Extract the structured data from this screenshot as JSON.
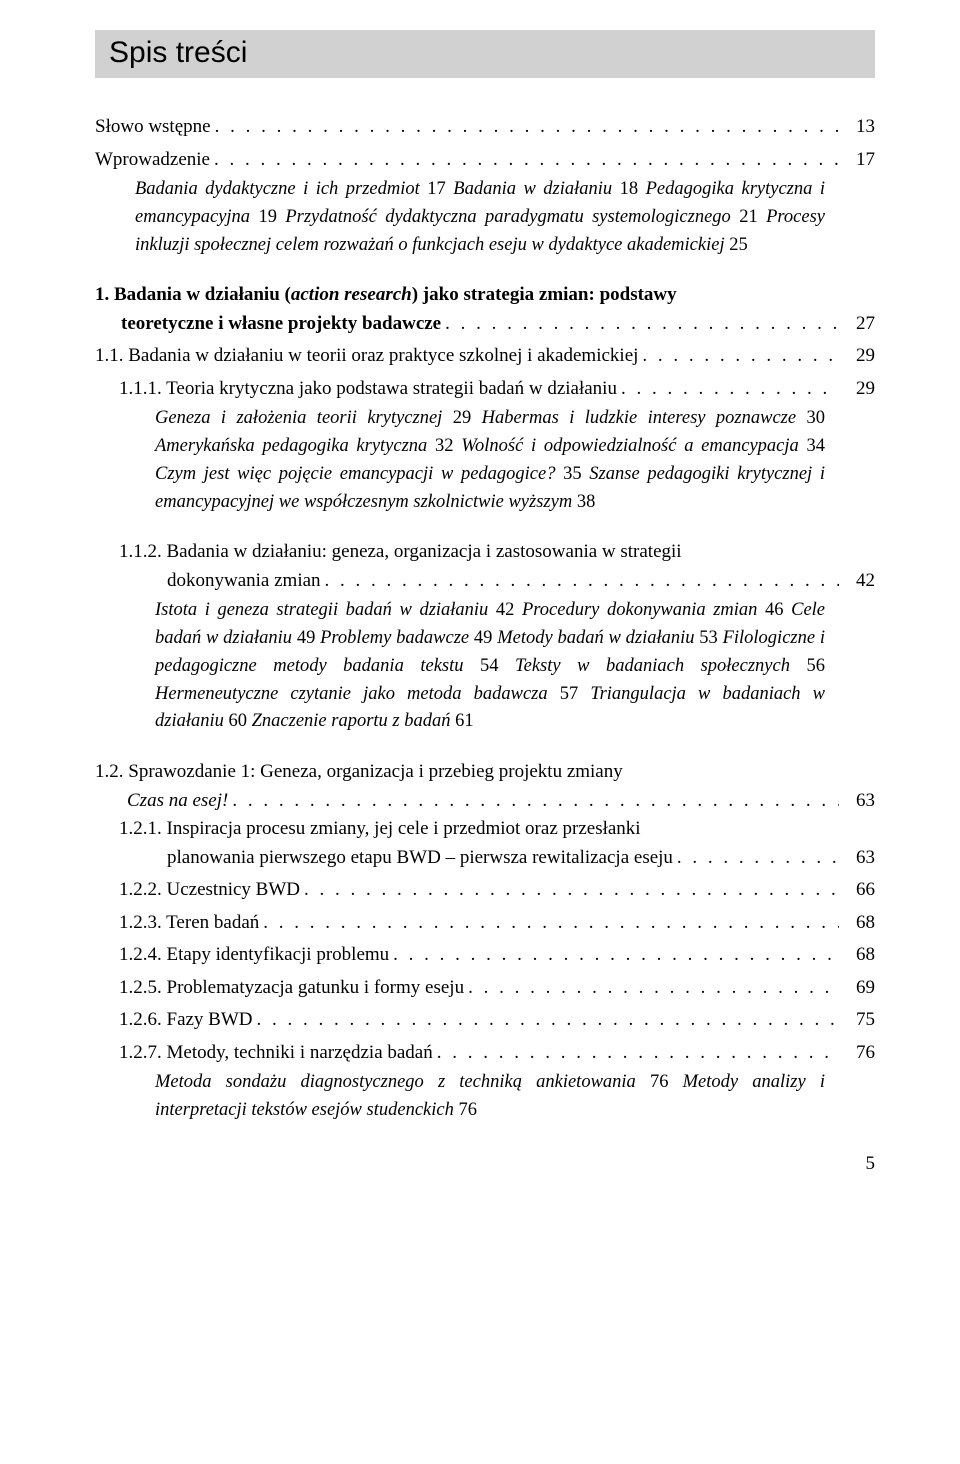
{
  "title": "Spis treści",
  "lines": {
    "l1": {
      "label": "Słowo wstępne",
      "page": "13"
    },
    "l2": {
      "label": "Wprowadzenie",
      "page": "17"
    },
    "runin1": "Badania dydaktyczne i ich przedmiot <n>17</n> Badania w działaniu <n>18</n> Pedagogika krytyczna i emancypacyjna <n>19</n> Przydatność dydaktyczna paradygmatu systemologicznego <n>21</n> Procesy inkluzji społecznej celem rozważań o funkcjach eseju w dydaktyce akademickiej <n>25</n>",
    "l3": {
      "label_a": "1.  Badania w działaniu (<i>action research</i>) jako strategia zmian: podstawy",
      "label_b": "teoretyczne i własne projekty badawcze",
      "page": "27"
    },
    "l4": {
      "label": "1.1. Badania w działaniu w teorii oraz praktyce szkolnej i akademickiej",
      "page": "29"
    },
    "l5": {
      "label": "1.1.1. Teoria krytyczna jako podstawa strategii badań w działaniu",
      "page": "29"
    },
    "runin2": "Geneza i założenia teorii krytycznej <n>29</n> Habermas i ludzkie interesy poznawcze <n>30</n> Amerykańska pedagogika krytyczna <n>32</n> Wolność i odpowiedzialność a emancypacja <n>34</n> Czym jest więc pojęcie emancypacji w pedagogice? <n>35</n> Szanse pedagogiki krytycznej i emancypacyjnej we współczesnym szkolnictwie wyższym <n>38</n>",
    "l6": {
      "label_a": "1.1.2. Badania w działaniu: geneza, organizacja i zastosowania w strategii",
      "label_b": "dokonywania zmian",
      "page": "42"
    },
    "runin3": "Istota i geneza strategii badań w działaniu <n>42</n> Procedury dokonywania zmian <n>46</n> Cele badań w działaniu <n>49</n> Problemy badawcze <n>49</n> Metody badań w działaniu <n>53</n> Filologiczne i pedagogiczne metody badania tekstu <n>54</n> Teksty w badaniach społecznych <n>56</n> Hermeneutyczne czytanie jako metoda badawcza <n>57</n> Triangulacja w badaniach w działaniu <n>60</n> Znaczenie raportu z badań <n>61</n>",
    "l7": {
      "label_a": "1.2. Sprawozdanie 1: Geneza, organizacja i przebieg projektu zmiany",
      "label_b": "<i>Czas na esej!</i>",
      "page": "63"
    },
    "l8": {
      "label_a": "1.2.1. Inspiracja procesu zmiany, jej cele i przedmiot oraz przesłanki",
      "label_b": "planowania pierwszego etapu BWD – pierwsza rewitalizacja eseju",
      "page": "63"
    },
    "l9": {
      "label": "1.2.2. Uczestnicy BWD",
      "page": "66"
    },
    "l10": {
      "label": "1.2.3. Teren badań",
      "page": "68"
    },
    "l11": {
      "label": "1.2.4. Etapy identyfikacji problemu",
      "page": "68"
    },
    "l12": {
      "label": "1.2.5. Problematyzacja gatunku i formy eseju",
      "page": "69"
    },
    "l13": {
      "label": "1.2.6. Fazy BWD",
      "page": "75"
    },
    "l14": {
      "label": "1.2.7. Metody, techniki i narzędzia badań",
      "page": "76"
    },
    "runin4": "Metoda sondażu diagnostycznego z techniką ankietowania <n>76</n> Metody analizy i interpretacji tekstów esejów studenckich <n>76</n>"
  },
  "footer_page": "5",
  "colors": {
    "title_bg": "#d1d1d1",
    "text": "#000000",
    "background": "#ffffff"
  },
  "typography": {
    "title_font": "Arial",
    "title_size_pt": 22,
    "body_font": "Georgia",
    "body_size_pt": 14,
    "runin_style": "italic"
  }
}
